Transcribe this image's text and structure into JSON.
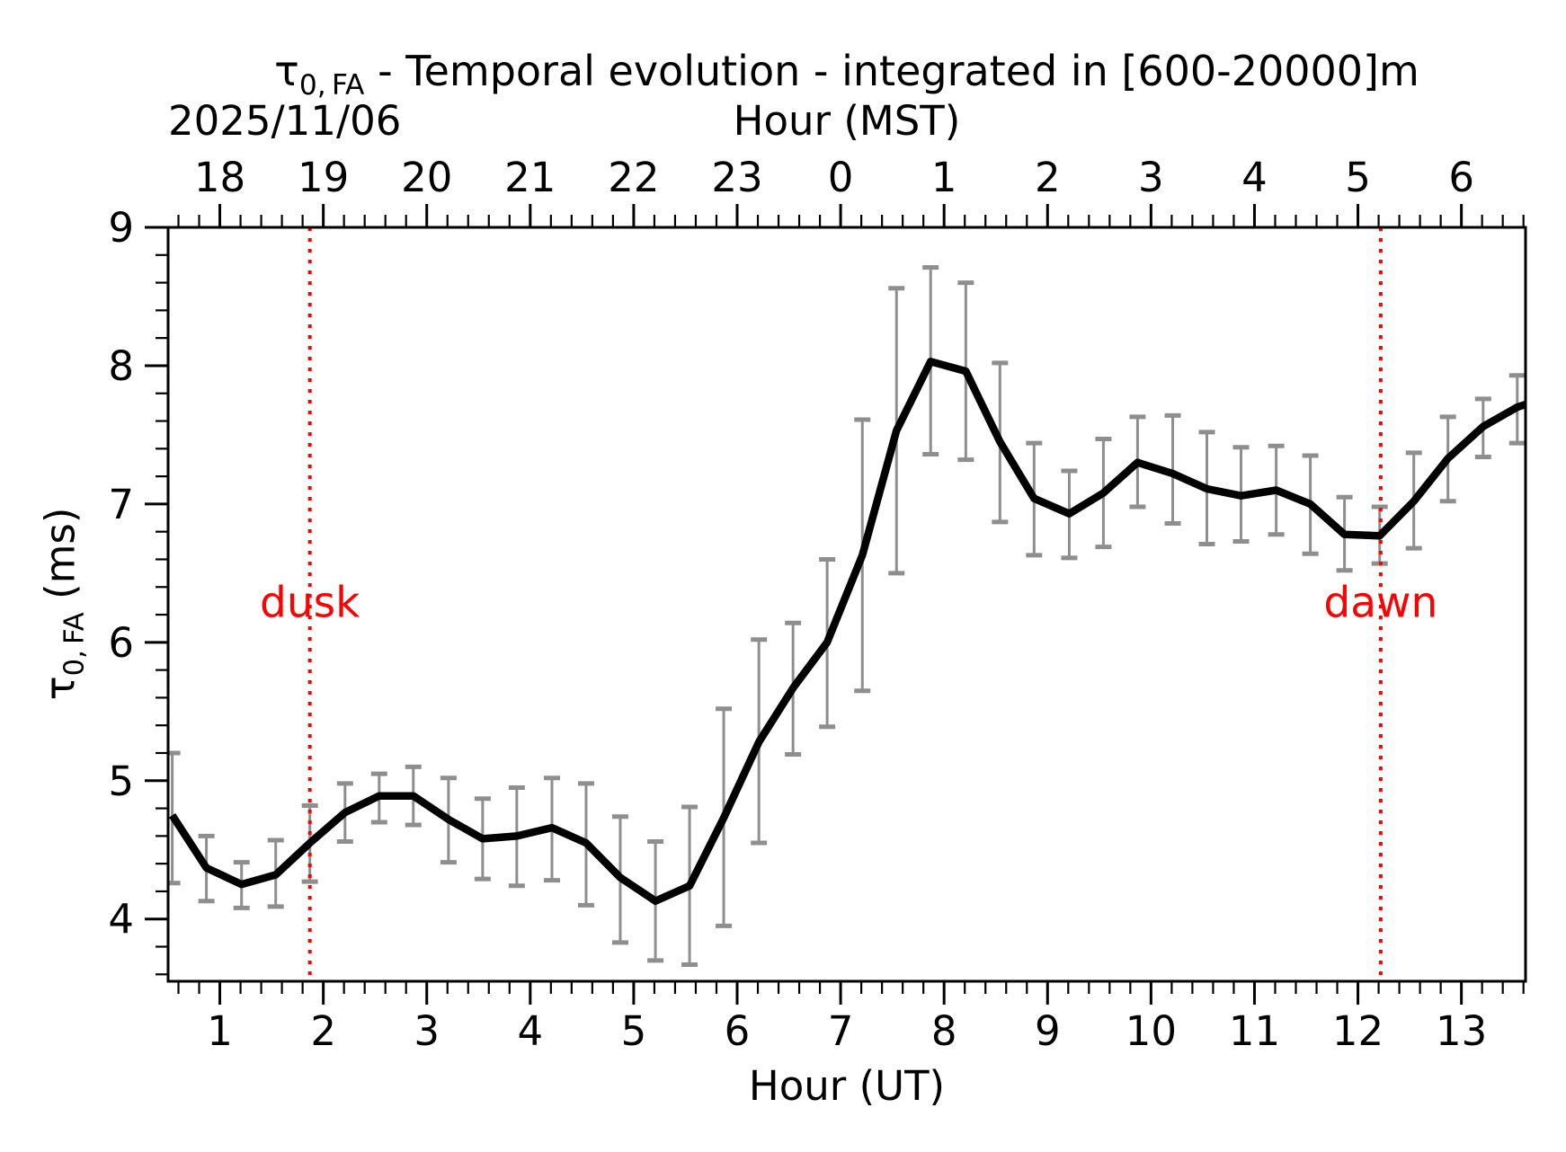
{
  "title": {
    "tau": "τ",
    "sub": "0, FA",
    "rest": " - Temporal evolution - integrated in [600-20000]m"
  },
  "header": {
    "date": "2025/11/06"
  },
  "axes": {
    "top": {
      "title": "Hour (MST)",
      "tick_labels": [
        "18",
        "19",
        "20",
        "21",
        "22",
        "23",
        "0",
        "1",
        "2",
        "3",
        "4",
        "5",
        "6"
      ]
    },
    "bottom": {
      "title": "Hour (UT)",
      "tick_labels": [
        "1",
        "2",
        "3",
        "4",
        "5",
        "6",
        "7",
        "8",
        "9",
        "10",
        "11",
        "12",
        "13"
      ]
    },
    "left": {
      "tau": "τ",
      "sub": "0, FA",
      "unit": " (ms)",
      "tick_labels": [
        "4",
        "5",
        "6",
        "7",
        "8",
        "9"
      ]
    }
  },
  "annotations": {
    "dusk": {
      "label": "dusk",
      "x": 1.87
    },
    "dawn": {
      "label": "dawn",
      "x": 12.22
    }
  },
  "colors": {
    "line": "#000000",
    "errorbar": "#8e8e8e",
    "annotation": "#ff0000",
    "text": "#000000",
    "background": "#ffffff"
  },
  "chart_data": {
    "type": "line",
    "title": "τ0,FA - Temporal evolution - integrated in [600-20000]m",
    "date": "2025/11/06",
    "xlabel_bottom": "Hour (UT)",
    "xlabel_top": "Hour (MST)",
    "ylabel": "τ0,FA (ms)",
    "grid": false,
    "legend": false,
    "xlim": [
      0.5,
      13.62
    ],
    "ylim": [
      3.55,
      9.0
    ],
    "x_major_ticks": [
      1,
      2,
      3,
      4,
      5,
      6,
      7,
      8,
      9,
      10,
      11,
      12,
      13
    ],
    "y_major_ticks": [
      4,
      5,
      6,
      7,
      8,
      9
    ],
    "x_minor_step": 0.2,
    "y_minor_step": 0.2,
    "dusk_x": 1.87,
    "dawn_x": 12.22,
    "series": [
      {
        "name": "tau0_FA_mean_with_error_bars",
        "x": [
          0.54,
          0.87,
          1.21,
          1.54,
          1.87,
          2.21,
          2.54,
          2.87,
          3.21,
          3.54,
          3.87,
          4.21,
          4.54,
          4.87,
          5.21,
          5.54,
          5.87,
          6.21,
          6.54,
          6.87,
          7.21,
          7.54,
          7.87,
          8.21,
          8.54,
          8.87,
          9.21,
          9.54,
          9.87,
          10.21,
          10.54,
          10.87,
          11.21,
          11.54,
          11.87,
          12.21,
          12.54,
          12.87,
          13.21,
          13.54
        ],
        "y": [
          4.75,
          4.37,
          4.25,
          4.32,
          4.55,
          4.77,
          4.89,
          4.89,
          4.72,
          4.58,
          4.6,
          4.66,
          4.55,
          4.3,
          4.13,
          4.24,
          4.73,
          5.28,
          5.67,
          6.0,
          6.63,
          7.53,
          8.03,
          7.96,
          7.45,
          7.04,
          6.93,
          7.08,
          7.3,
          7.22,
          7.11,
          7.06,
          7.1,
          7.0,
          6.78,
          6.77,
          7.02,
          7.33,
          7.56,
          7.7
        ],
        "err_lo": [
          4.26,
          4.13,
          4.08,
          4.09,
          4.27,
          4.56,
          4.7,
          4.68,
          4.41,
          4.29,
          4.24,
          4.28,
          4.1,
          3.83,
          3.7,
          3.67,
          3.95,
          4.55,
          5.19,
          5.39,
          5.65,
          6.5,
          7.36,
          7.32,
          6.87,
          6.63,
          6.61,
          6.69,
          6.98,
          6.86,
          6.71,
          6.73,
          6.78,
          6.64,
          6.52,
          6.57,
          6.68,
          7.02,
          7.34,
          7.44
        ],
        "err_hi": [
          5.2,
          4.6,
          4.41,
          4.57,
          4.82,
          4.98,
          5.05,
          5.1,
          5.02,
          4.87,
          4.95,
          5.02,
          4.98,
          4.74,
          4.56,
          4.81,
          5.52,
          6.02,
          6.14,
          6.6,
          7.61,
          8.56,
          8.71,
          8.6,
          8.02,
          7.44,
          7.24,
          7.47,
          7.63,
          7.64,
          7.52,
          7.41,
          7.42,
          7.35,
          7.05,
          6.98,
          7.37,
          7.63,
          7.76,
          7.93
        ]
      }
    ],
    "edge_extension": {
      "x": 13.62,
      "y": 7.72
    }
  }
}
